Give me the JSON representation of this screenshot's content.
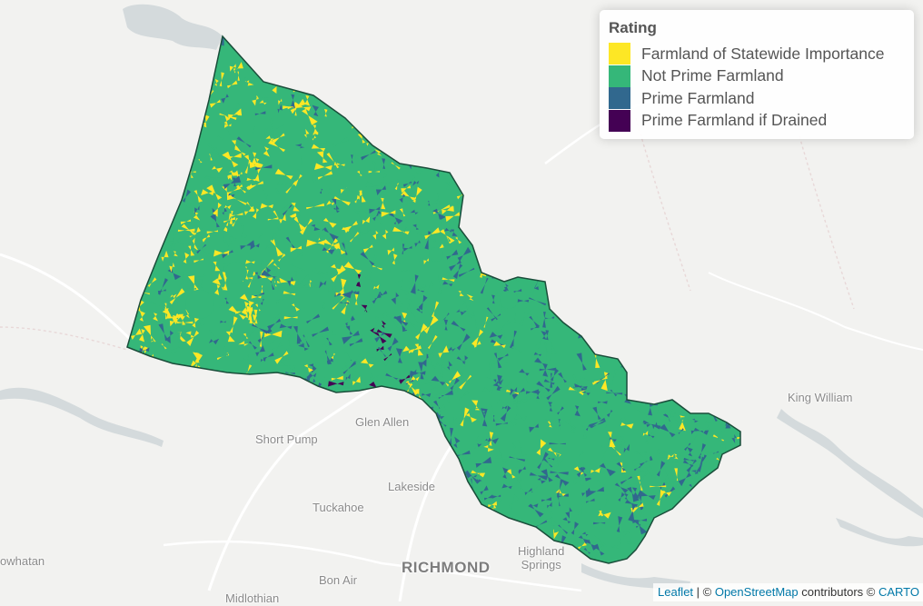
{
  "legend": {
    "title": "Rating",
    "items": [
      {
        "label": "Farmland of Statewide Importance",
        "color": "#fde725"
      },
      {
        "label": "Not Prime Farmland",
        "color": "#35b779"
      },
      {
        "label": "Prime Farmland",
        "color": "#31688e"
      },
      {
        "label": "Prime Farmland if Drained",
        "color": "#440154"
      }
    ]
  },
  "places": {
    "king_william": "King William",
    "glen_allen": "Glen Allen",
    "short_pump": "Short Pump",
    "lakeside": "Lakeside",
    "tuckahoe": "Tuckahoe",
    "richmond": "RICHMOND",
    "highland_springs_1": "Highland",
    "highland_springs_2": "Springs",
    "bon_air": "Bon Air",
    "powhatan": "owhatan",
    "midlothian": "Midlothian"
  },
  "attribution": {
    "leaflet": "Leaflet",
    "sep": " | © ",
    "osm": "OpenStreetMap",
    "contributors": " contributors © ",
    "carto": "CARTO"
  },
  "colors": {
    "base_background": "#f2f2f0",
    "water": "#d4dadc",
    "roads": "#ffffff",
    "county_border": "#1a4d3a"
  }
}
